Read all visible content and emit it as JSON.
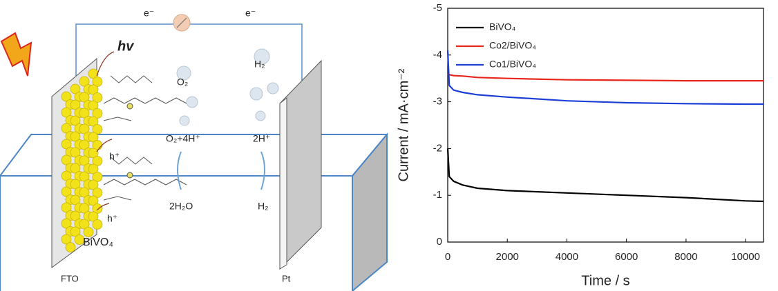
{
  "diagram": {
    "labels": {
      "electron_left": "e⁻",
      "electron_right": "e⁻",
      "light": "hv",
      "oxygen_bubble": "O₂",
      "hydrogen_bubble": "H₂",
      "anode_product": "O₂+4H⁺",
      "cathode_reactant": "2H⁺",
      "hole_upper": "h⁺",
      "hole_lower": "h⁺",
      "water": "2H₂O",
      "hydrogen": "H₂",
      "photoanode": "BiVO₄",
      "substrate": "FTO",
      "cathode": "Pt"
    }
  },
  "chart_data": {
    "type": "line",
    "xlabel": "Time / s",
    "ylabel": "Current / mA·cm⁻²",
    "x": [
      0,
      50,
      200,
      500,
      1000,
      2000,
      4000,
      6000,
      8000,
      10000,
      10600
    ],
    "series": [
      {
        "name": "BiVO₄",
        "color": "#000000",
        "values": [
          -2.0,
          -1.4,
          -1.3,
          -1.22,
          -1.15,
          -1.1,
          -1.05,
          -1.0,
          -0.95,
          -0.88,
          -0.87
        ]
      },
      {
        "name": "Co2/BiVO₄",
        "color": "#e8261c",
        "values": [
          -3.6,
          -3.58,
          -3.56,
          -3.55,
          -3.52,
          -3.5,
          -3.47,
          -3.46,
          -3.45,
          -3.45,
          -3.45
        ]
      },
      {
        "name": "Co1/BiVO₄",
        "color": "#1b3fd6",
        "values": [
          -4.1,
          -3.35,
          -3.25,
          -3.2,
          -3.15,
          -3.1,
          -3.02,
          -2.98,
          -2.96,
          -2.95,
          -2.95
        ]
      }
    ],
    "xlim": [
      0,
      10600
    ],
    "xticks": [
      0,
      2000,
      4000,
      6000,
      8000,
      10000
    ],
    "ylim": [
      0,
      -5
    ],
    "yticks": [
      0,
      -1,
      -2,
      -3,
      -4,
      -5
    ],
    "legend": "upper-left"
  }
}
